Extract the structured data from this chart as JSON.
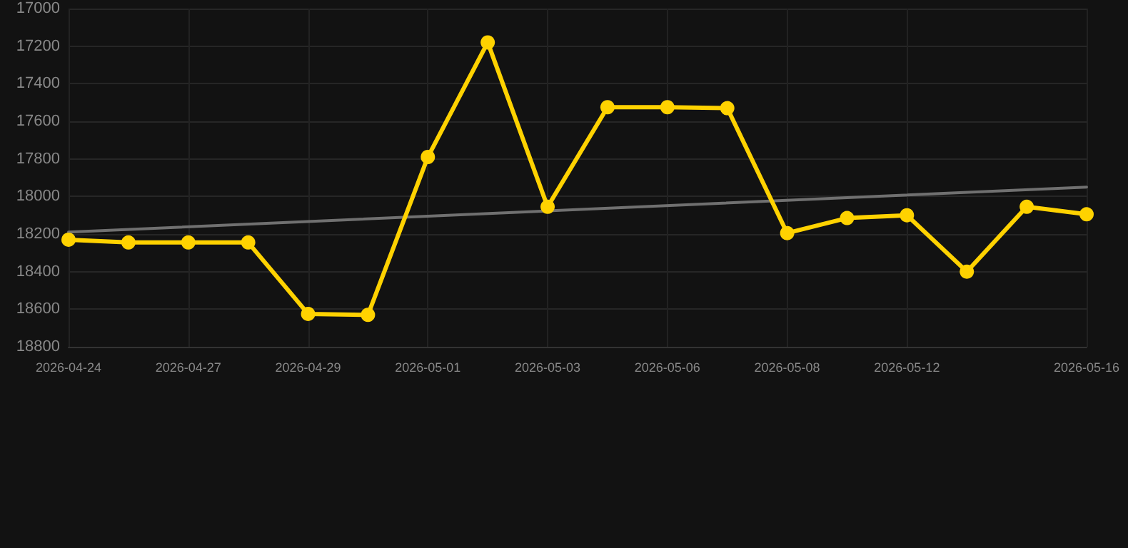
{
  "chart_data": {
    "type": "line",
    "categories": [
      "2026-04-24",
      null,
      "2026-04-27",
      null,
      "2026-04-29",
      null,
      "2026-05-01",
      null,
      "2026-05-03",
      null,
      "2026-05-06",
      null,
      "2026-05-08",
      null,
      "2026-05-12",
      null,
      null,
      "2026-05-16"
    ],
    "series": [
      {
        "color": "#ffd200",
        "marker": "circle",
        "values": [
          18230,
          18245,
          18245,
          18245,
          18625,
          18630,
          17790,
          17180,
          18055,
          17525,
          17525,
          17530,
          18195,
          18115,
          18100,
          18400,
          18055,
          18095
        ]
      },
      {
        "color": "#707070",
        "marker": "none",
        "values": [
          18190,
          null,
          null,
          null,
          null,
          null,
          null,
          null,
          null,
          null,
          null,
          null,
          null,
          null,
          null,
          null,
          null,
          17950
        ]
      }
    ],
    "ylim": [
      18800,
      17000
    ],
    "yticks": [
      17000,
      17200,
      17400,
      17600,
      17800,
      18000,
      18200,
      18400,
      18600,
      18800
    ],
    "grid": true,
    "line_style": "solid"
  }
}
